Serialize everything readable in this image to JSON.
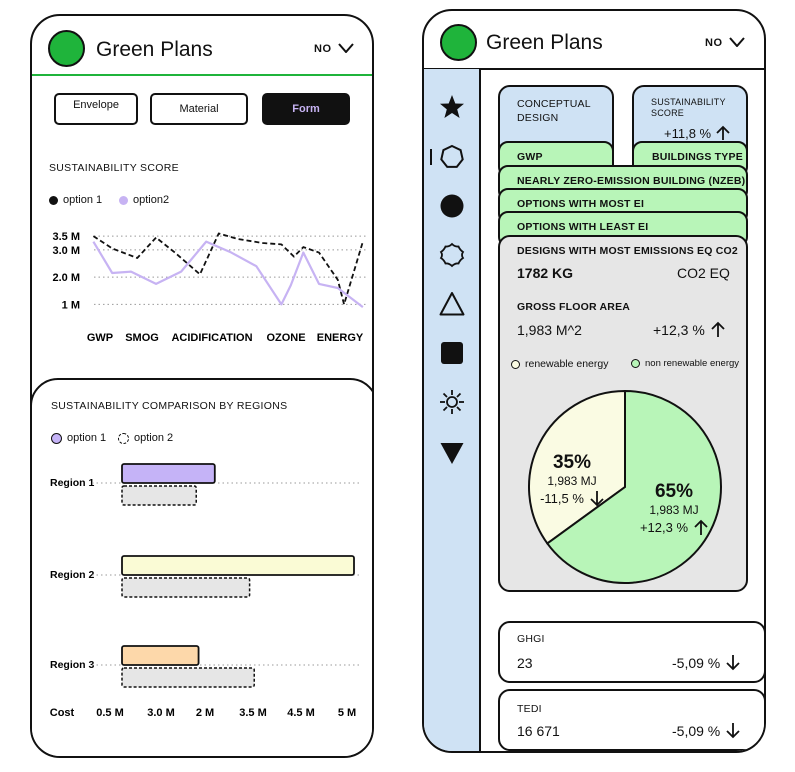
{
  "app": {
    "title": "Green Plans",
    "lang_label": "NO"
  },
  "left": {
    "tabs": [
      "Envelope",
      "Material",
      "Form"
    ],
    "score_title": "SUSTAINABILITY  SCORE",
    "legend": [
      "option 1",
      "option2"
    ],
    "chart_data": {
      "type": "line",
      "categories": [
        "GWP",
        "SMOG",
        "ACIDIFICATION",
        "OZONE",
        "ENERGY"
      ],
      "y_tick_labels": [
        "3.5 M",
        "3.0 M",
        "2.0 M",
        "1 M"
      ],
      "series": [
        {
          "name": "option 1",
          "style": "dashed",
          "color": "#111111",
          "x": [
            0,
            0.3,
            0.7,
            1.0,
            1.3,
            1.7,
            2.0,
            2.3,
            2.7,
            3.0,
            3.2,
            3.35,
            3.6,
            3.9,
            4.0,
            4.3
          ],
          "y": [
            3.5,
            3.05,
            2.7,
            3.45,
            2.9,
            2.1,
            3.6,
            3.4,
            3.25,
            3.2,
            2.75,
            3.1,
            2.9,
            1.9,
            1.0,
            3.3
          ]
        },
        {
          "name": "option2",
          "style": "solid",
          "color": "#c7b3f3",
          "x": [
            0,
            0.3,
            0.6,
            1.0,
            1.4,
            1.8,
            2.2,
            2.6,
            3.0,
            3.15,
            3.35,
            3.6,
            3.9,
            4.3
          ],
          "y": [
            3.3,
            2.15,
            2.2,
            1.75,
            2.2,
            3.3,
            2.9,
            2.4,
            1.0,
            1.7,
            2.9,
            1.75,
            1.6,
            0.9
          ]
        }
      ],
      "ylim": [
        0.5,
        3.8
      ],
      "xlim": [
        -0.15,
        4.35
      ]
    },
    "regions_title": "SUSTAINABILITY  COMPARISON BY REGIONS",
    "regions_legend": [
      "option 1",
      "option 2"
    ],
    "regions_chart": {
      "type": "bar",
      "categories": [
        "Region 1",
        "Region 2",
        "Region 3"
      ],
      "x_tick_labels": [
        "Cost",
        "0.5 M",
        "3.0 M",
        "2 M",
        "3.5 M",
        "4.5 M",
        "5 M"
      ],
      "series": [
        {
          "name": "option 1",
          "values": [
            0.4,
            1.0,
            0.33
          ],
          "colors": [
            "#c5b3f7",
            "#fafbd5",
            "#fdd8aa"
          ]
        },
        {
          "name": "option 2",
          "values": [
            0.32,
            0.55,
            0.57
          ],
          "color": "#e6e6e6",
          "dashed": true
        }
      ]
    }
  },
  "right": {
    "conceptual_design": "CONCEPTUAL\nDESIGN",
    "sustainability_score_label": "SUSTAINABILITY\nSCORE",
    "sustainability_score_value": "+11,8 %",
    "gwp": "GWP",
    "buildings_type": "BUILDINGS TYPE",
    "strips": [
      "NEARLY ZERO-EMISSION BUILDING (NZEB)",
      "OPTIONS WITH MOST EI",
      "OPTIONS WITH LEAST EI"
    ],
    "emissions_title": "DESIGNS WITH MOST  EMISSIONS EQ CO2",
    "emissions_value": "1782 KG",
    "emissions_unit": "CO2 EQ",
    "gfa_title": "GROSS FLOOR AREA",
    "gfa_value": "1,983 M^2",
    "gfa_change": "+12,3 %",
    "pie_legend": [
      "renewable energy",
      "non renewable energy"
    ],
    "pie": {
      "chart_data": {
        "type": "pie",
        "labels": [
          "renewable energy",
          "non renewable energy"
        ],
        "values": [
          35,
          65
        ],
        "colors": [
          "#fafbe3",
          "#b8f5b8"
        ]
      },
      "slices": [
        {
          "pct": "35%",
          "mj": "1,983 MJ",
          "change": "-11,5 %"
        },
        {
          "pct": "65%",
          "mj": "1,983 MJ",
          "change": "+12,3 %"
        }
      ]
    },
    "kpis": [
      {
        "label": "GHGI",
        "value": "23",
        "change": "-5,09 %"
      },
      {
        "label": "TEDI",
        "value": "16 671",
        "change": "-5,09 %"
      }
    ],
    "sidebar_icons": [
      "star-icon",
      "heptagon-icon",
      "circle-icon",
      "flower-icon",
      "triangle-icon",
      "square-icon",
      "sun-icon",
      "down-triangle-icon"
    ]
  }
}
